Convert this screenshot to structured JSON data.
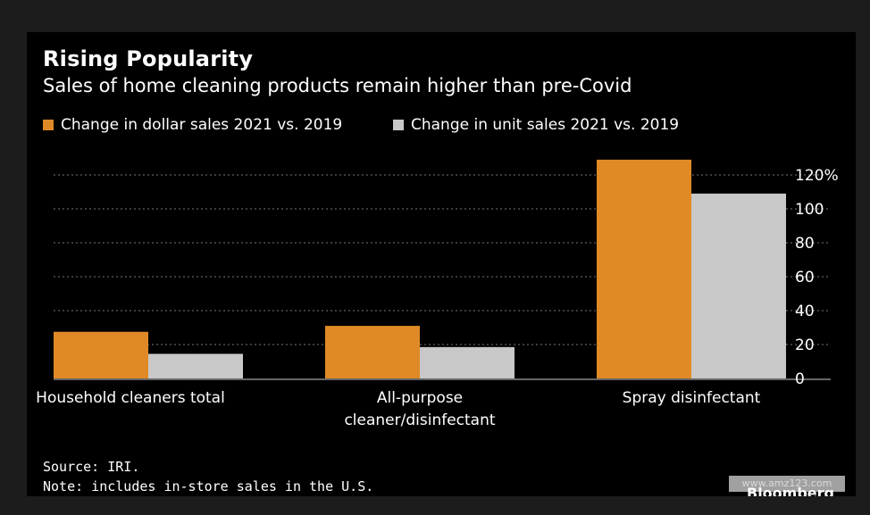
{
  "chart_data": {
    "type": "bar",
    "title": "Rising Popularity",
    "subtitle": "Sales of home cleaning products remain higher than pre-Covid",
    "categories": [
      "Household cleaners total",
      "All-purpose cleaner/disinfectant",
      "Spray disinfectant"
    ],
    "category_lines": [
      [
        "Household cleaners total"
      ],
      [
        "All-purpose",
        "cleaner/disinfectant"
      ],
      [
        "Spray disinfectant"
      ]
    ],
    "series": [
      {
        "name": "Change in dollar sales 2021 vs. 2019",
        "values": [
          27.5,
          31,
          129
        ],
        "color": "#e08a27"
      },
      {
        "name": "Change in unit sales 2021 vs. 2019",
        "values": [
          14.5,
          18.5,
          109
        ],
        "color": "#c8c8c8"
      }
    ],
    "y_ticks": [
      "0",
      "20",
      "40",
      "60",
      "80",
      "100",
      "120%"
    ],
    "ylim": [
      0,
      130
    ],
    "y_axis_position": "right",
    "grid": true,
    "legend_position": "top-left",
    "xlabel": "",
    "ylabel": ""
  },
  "footer": {
    "source": "Source: IRI.",
    "note": "Note: includes in-store sales in the U.S."
  },
  "watermark": "www.amz123.com",
  "brand": "Bloomberg"
}
